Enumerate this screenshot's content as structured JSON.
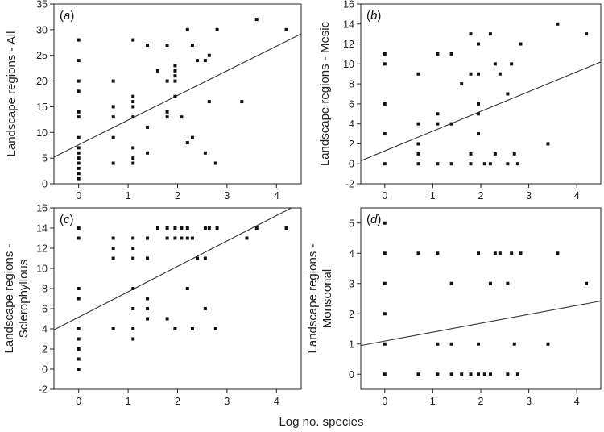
{
  "figure": {
    "xlabel": "Log no. species"
  },
  "chart_data": [
    {
      "type": "scatter",
      "panel_label": "(a)",
      "ylabel": [
        "Landscape regions - All"
      ],
      "xlim": [
        -0.5,
        4.5
      ],
      "ylim": [
        0,
        35
      ],
      "xticks": [
        0,
        1,
        2,
        3,
        4
      ],
      "yticks": [
        0,
        5,
        10,
        15,
        20,
        25,
        30,
        35
      ],
      "fit_line": {
        "x": [
          -0.5,
          4.5
        ],
        "y": [
          5.2,
          29.2
        ]
      },
      "points": [
        [
          0,
          1
        ],
        [
          0,
          2
        ],
        [
          0,
          3
        ],
        [
          0,
          4
        ],
        [
          0,
          5
        ],
        [
          0,
          6
        ],
        [
          0,
          7
        ],
        [
          0,
          9
        ],
        [
          0,
          13
        ],
        [
          0,
          14
        ],
        [
          0,
          18
        ],
        [
          0,
          20
        ],
        [
          0,
          24
        ],
        [
          0,
          28
        ],
        [
          0.7,
          4
        ],
        [
          0.7,
          9
        ],
        [
          0.7,
          13
        ],
        [
          0.7,
          15
        ],
        [
          0.7,
          20
        ],
        [
          1.1,
          4
        ],
        [
          1.1,
          5
        ],
        [
          1.1,
          7
        ],
        [
          1.1,
          13
        ],
        [
          1.1,
          15
        ],
        [
          1.1,
          16
        ],
        [
          1.1,
          17
        ],
        [
          1.1,
          28
        ],
        [
          1.39,
          6
        ],
        [
          1.39,
          11
        ],
        [
          1.39,
          27
        ],
        [
          1.6,
          22
        ],
        [
          1.79,
          13
        ],
        [
          1.79,
          14
        ],
        [
          1.79,
          20
        ],
        [
          1.79,
          27
        ],
        [
          1.95,
          17
        ],
        [
          1.95,
          20
        ],
        [
          1.95,
          21
        ],
        [
          1.95,
          22
        ],
        [
          1.95,
          23
        ],
        [
          2.08,
          13
        ],
        [
          2.2,
          8
        ],
        [
          2.2,
          30
        ],
        [
          2.3,
          9
        ],
        [
          2.3,
          27
        ],
        [
          2.4,
          24
        ],
        [
          2.56,
          6
        ],
        [
          2.56,
          24
        ],
        [
          2.64,
          16
        ],
        [
          2.64,
          25
        ],
        [
          2.77,
          4
        ],
        [
          2.8,
          30
        ],
        [
          3.3,
          16
        ],
        [
          3.6,
          32
        ],
        [
          4.2,
          30
        ]
      ]
    },
    {
      "type": "scatter",
      "panel_label": "(b)",
      "ylabel": [
        "Landscape regions - Mesic"
      ],
      "xlim": [
        -0.5,
        4.5
      ],
      "ylim": [
        -2,
        16
      ],
      "xticks": [
        0,
        1,
        2,
        3,
        4
      ],
      "yticks": [
        -2,
        0,
        2,
        4,
        6,
        8,
        10,
        12,
        14,
        16
      ],
      "fit_line": {
        "x": [
          -0.5,
          4.5
        ],
        "y": [
          0.3,
          10.2
        ]
      },
      "points": [
        [
          0,
          0
        ],
        [
          0,
          3
        ],
        [
          0,
          6
        ],
        [
          0,
          10
        ],
        [
          0,
          11
        ],
        [
          0.7,
          0
        ],
        [
          0.7,
          1
        ],
        [
          0.7,
          2
        ],
        [
          0.7,
          4
        ],
        [
          0.7,
          9
        ],
        [
          1.1,
          0
        ],
        [
          1.1,
          4
        ],
        [
          1.1,
          5
        ],
        [
          1.1,
          11
        ],
        [
          1.39,
          0
        ],
        [
          1.39,
          4
        ],
        [
          1.39,
          11
        ],
        [
          1.6,
          8
        ],
        [
          1.79,
          0
        ],
        [
          1.79,
          1
        ],
        [
          1.79,
          9
        ],
        [
          1.79,
          13
        ],
        [
          1.95,
          3
        ],
        [
          1.95,
          5
        ],
        [
          1.95,
          6
        ],
        [
          1.95,
          9
        ],
        [
          1.95,
          12
        ],
        [
          2.08,
          0
        ],
        [
          2.2,
          0
        ],
        [
          2.2,
          13
        ],
        [
          2.3,
          1
        ],
        [
          2.3,
          10
        ],
        [
          2.4,
          9
        ],
        [
          2.56,
          0
        ],
        [
          2.56,
          7
        ],
        [
          2.64,
          10
        ],
        [
          2.7,
          1
        ],
        [
          2.77,
          0
        ],
        [
          2.83,
          12
        ],
        [
          3.4,
          2
        ],
        [
          3.6,
          14
        ],
        [
          4.2,
          13
        ]
      ]
    },
    {
      "type": "scatter",
      "panel_label": "(c)",
      "ylabel": [
        "Landscape regions -",
        "Sclerophyllous"
      ],
      "xlim": [
        -0.5,
        4.5
      ],
      "ylim": [
        -2,
        16
      ],
      "xticks": [
        0,
        1,
        2,
        3,
        4
      ],
      "yticks": [
        -2,
        0,
        2,
        4,
        6,
        8,
        10,
        12,
        14,
        16
      ],
      "fit_line": {
        "x": [
          -0.5,
          4.3
        ],
        "y": [
          3.9,
          16
        ]
      },
      "points": [
        [
          0,
          0
        ],
        [
          0,
          1
        ],
        [
          0,
          2
        ],
        [
          0,
          3
        ],
        [
          0,
          4
        ],
        [
          0,
          7
        ],
        [
          0,
          8
        ],
        [
          0,
          13
        ],
        [
          0,
          14
        ],
        [
          0.7,
          4
        ],
        [
          0.7,
          11
        ],
        [
          0.7,
          12
        ],
        [
          0.7,
          13
        ],
        [
          1.1,
          3
        ],
        [
          1.1,
          4
        ],
        [
          1.1,
          6
        ],
        [
          1.1,
          8
        ],
        [
          1.1,
          11
        ],
        [
          1.1,
          12
        ],
        [
          1.1,
          13
        ],
        [
          1.39,
          5
        ],
        [
          1.39,
          6
        ],
        [
          1.39,
          7
        ],
        [
          1.39,
          11
        ],
        [
          1.39,
          13
        ],
        [
          1.6,
          14
        ],
        [
          1.79,
          5
        ],
        [
          1.79,
          13
        ],
        [
          1.79,
          14
        ],
        [
          1.95,
          4
        ],
        [
          1.95,
          13
        ],
        [
          1.95,
          14
        ],
        [
          2.08,
          13
        ],
        [
          2.08,
          14
        ],
        [
          2.2,
          8
        ],
        [
          2.2,
          13
        ],
        [
          2.2,
          14
        ],
        [
          2.3,
          4
        ],
        [
          2.3,
          13
        ],
        [
          2.4,
          11
        ],
        [
          2.56,
          6
        ],
        [
          2.56,
          11
        ],
        [
          2.56,
          14
        ],
        [
          2.64,
          14
        ],
        [
          2.77,
          4
        ],
        [
          2.8,
          14
        ],
        [
          3.4,
          13
        ],
        [
          3.6,
          14
        ],
        [
          4.2,
          14
        ]
      ]
    },
    {
      "type": "scatter",
      "panel_label": "(d)",
      "ylabel": [
        "Landscape regions -",
        "Monsoonal"
      ],
      "xlim": [
        -0.5,
        4.5
      ],
      "ylim": [
        -0.5,
        5.5
      ],
      "xticks": [
        0,
        1,
        2,
        3,
        4
      ],
      "yticks": [
        0,
        1,
        2,
        3,
        4,
        5
      ],
      "fit_line": {
        "x": [
          -0.5,
          4.5
        ],
        "y": [
          0.95,
          2.42
        ]
      },
      "points": [
        [
          0,
          0
        ],
        [
          0,
          1
        ],
        [
          0,
          2
        ],
        [
          0,
          3
        ],
        [
          0,
          4
        ],
        [
          0,
          5
        ],
        [
          0.7,
          0
        ],
        [
          0.7,
          4
        ],
        [
          1.1,
          0
        ],
        [
          1.1,
          1
        ],
        [
          1.1,
          4
        ],
        [
          1.39,
          0
        ],
        [
          1.39,
          1
        ],
        [
          1.39,
          3
        ],
        [
          1.6,
          0
        ],
        [
          1.79,
          0
        ],
        [
          1.95,
          0
        ],
        [
          1.95,
          1
        ],
        [
          1.95,
          4
        ],
        [
          2.08,
          0
        ],
        [
          2.2,
          0
        ],
        [
          2.2,
          3
        ],
        [
          2.3,
          4
        ],
        [
          2.4,
          4
        ],
        [
          2.56,
          0
        ],
        [
          2.56,
          3
        ],
        [
          2.64,
          4
        ],
        [
          2.7,
          1
        ],
        [
          2.77,
          0
        ],
        [
          2.83,
          4
        ],
        [
          3.4,
          1
        ],
        [
          3.6,
          4
        ],
        [
          4.2,
          3
        ]
      ]
    }
  ]
}
